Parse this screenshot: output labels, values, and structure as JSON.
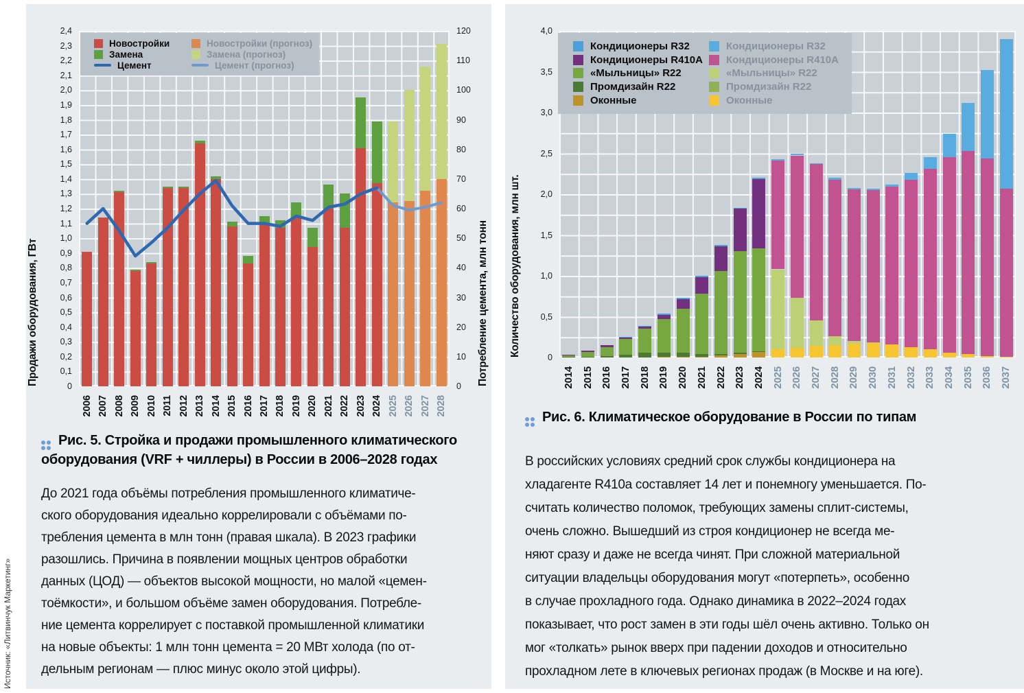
{
  "page": {
    "source_note": "Источник: «Литвинчук Маркетинг»",
    "marker_color": "#6f9ed6",
    "forecast_tick_color": "#7f93a5"
  },
  "fig5": {
    "caption_prefix": "Рис. 5.",
    "caption_body": " Стройка и продажи промышленного климатического\nоборудования (VRF + чиллеры) в России в 2006–2028 годах",
    "paragraph": "До 2021 года объёмы потребления промышленного климатиче-\nского оборудования идеально коррелировали с объёмами по-\nтребления цемента в млн тонн (правая шкала). В 2023 графики\nразошлись. Причина в появлении мощных центров обработки\nданных (ЦОД) — объектов высокой мощности, но малой «цемен-\nтоёмкости», и большом объёме замен оборудования. Потребле-\nние цемента коррелирует с поставкой промышленной климатики\nна новые объекты: 1 млн тонн цемента = 20 МВт холода (по от-\nдельным регионам — плюс минус около этой цифры)."
  },
  "fig6": {
    "caption_prefix": "Рис. 6.",
    "caption_body": " Климатическое оборудование в России по типам",
    "paragraph": "В российских условиях средний срок службы кондиционера на\nхладагенте R410a составляет 14 лет и понемногу уменьшается. По-\nсчитать количество поломок, требующих замены сплит-системы,\nочень сложно. Вышедший из строя кондиционер не всегда ме-\nняют сразу и даже не всегда чинят. При сложной материальной\nситуации владельцы оборудования могут «потерпеть», особенно\nв случае прохладного года. Однако динамика в 2022–2024 годах\nпоказывает, что рост замен в эти годы шёл очень активно. Только он\nмог «толкать» рынок вверх при падении доходов и относительно\nпрохладном лете в ключевых регионах продаж (в Москве и на юге)."
  },
  "chart_data": [
    {
      "id": "fig5",
      "type": "bar+line",
      "title": "Стройка и продажи промышленного климатического оборудования (VRF + чиллеры) в России в 2006–2028 годах",
      "ylabel_left": "Продажи оборудования, ГВт",
      "ylabel_right": "Потребление цемента, млн тонн",
      "ylim_left": [
        0,
        2.4
      ],
      "ytick_left": 0.1,
      "ylim_right": [
        0,
        120
      ],
      "ytick_right": 10,
      "grid": true,
      "legend_position": "top-left",
      "categories": [
        2006,
        2007,
        2008,
        2009,
        2010,
        2011,
        2012,
        2013,
        2014,
        2015,
        2016,
        2017,
        2018,
        2019,
        2020,
        2021,
        2022,
        2023,
        2024,
        2025,
        2026,
        2027,
        2028
      ],
      "forecast_start": 2025,
      "legend_actual": [
        "Новостройки",
        "Замена",
        "Цемент"
      ],
      "legend_forecast": [
        "Новостройки (прогноз)",
        "Замена (прогноз)",
        "Цемент (прогноз)"
      ],
      "series": {
        "new_build_gw": [
          0.91,
          1.14,
          1.31,
          0.78,
          0.83,
          1.34,
          1.34,
          1.64,
          1.4,
          1.08,
          0.83,
          1.09,
          1.07,
          1.14,
          0.94,
          1.2,
          1.07,
          1.61,
          1.37,
          1.24,
          1.25,
          1.32,
          1.4
        ],
        "replacement_gw": [
          0.0,
          0.0,
          0.01,
          0.01,
          0.01,
          0.01,
          0.01,
          0.02,
          0.02,
          0.03,
          0.05,
          0.06,
          0.05,
          0.1,
          0.13,
          0.16,
          0.23,
          0.34,
          0.42,
          0.55,
          0.75,
          0.84,
          0.91
        ],
        "cement_mln_tonn": [
          55,
          60,
          52.5,
          44,
          48.5,
          53.5,
          59.5,
          65,
          69.5,
          61,
          55,
          55,
          54,
          57.5,
          56,
          60.5,
          61.5,
          65,
          67,
          61,
          59.5,
          60.5,
          62
        ]
      },
      "colors": {
        "new_build": "#cb4c42",
        "replacement": "#5ea03f",
        "new_build_forecast": "#e0874d",
        "replacement_forecast": "#c6d47d",
        "cement": "#2d68b0",
        "cement_forecast": "#6e9ace"
      }
    },
    {
      "id": "fig6",
      "type": "stacked-bar",
      "title": "Климатическое оборудование в России по типам",
      "ylabel": "Количество оборудования, млн шт.",
      "ylim": [
        0,
        4.0
      ],
      "ytick": 0.5,
      "grid": true,
      "legend_position": "top-left",
      "categories": [
        2014,
        2015,
        2016,
        2017,
        2018,
        2019,
        2020,
        2021,
        2022,
        2023,
        2024,
        2025,
        2026,
        2027,
        2028,
        2029,
        2030,
        2031,
        2032,
        2033,
        2034,
        2035,
        2036,
        2037
      ],
      "forecast_start": 2025,
      "stack_order": [
        "window",
        "promdesign",
        "mylnitsy",
        "r410a",
        "r32"
      ],
      "legend_order": [
        "r32",
        "r410a",
        "mylnitsy",
        "promdesign",
        "window"
      ],
      "series_labels": {
        "r32": "Кондиционеры R32",
        "r410a": "Кондиционеры R410A",
        "mylnitsy": "«Мыльницы» R22",
        "promdesign": "Промдизайн R22",
        "window": "Оконные"
      },
      "series": {
        "window": [
          0,
          0,
          0,
          0,
          0,
          0.005,
          0.01,
          0.01,
          0.025,
          0.045,
          0.065,
          0.1,
          0.12,
          0.14,
          0.155,
          0.17,
          0.18,
          0.16,
          0.13,
          0.1,
          0.06,
          0.04,
          0.02,
          0.01
        ],
        "promdesign": [
          0.005,
          0.01,
          0.015,
          0.03,
          0.055,
          0.055,
          0.045,
          0.035,
          0.02,
          0.01,
          0.01,
          0,
          0,
          0,
          0,
          0,
          0,
          0,
          0,
          0,
          0,
          0,
          0,
          0
        ],
        "mylnitsy": [
          0.02,
          0.06,
          0.115,
          0.2,
          0.295,
          0.41,
          0.545,
          0.735,
          1.015,
          1.245,
          1.26,
          0.98,
          0.615,
          0.31,
          0.105,
          0.03,
          0.005,
          0,
          0,
          0,
          0,
          0,
          0,
          0
        ],
        "r410a": [
          0.005,
          0.01,
          0.02,
          0.02,
          0.025,
          0.05,
          0.115,
          0.2,
          0.3,
          0.52,
          0.85,
          1.33,
          1.74,
          1.92,
          1.92,
          1.86,
          1.865,
          1.93,
          2.05,
          2.21,
          2.39,
          2.49,
          2.42,
          2.06
        ],
        "r32": [
          0,
          0,
          0,
          0.005,
          0.01,
          0.015,
          0.015,
          0.02,
          0.02,
          0.01,
          0.02,
          0.02,
          0.025,
          0.01,
          0.02,
          0.02,
          0.02,
          0.03,
          0.08,
          0.14,
          0.29,
          0.59,
          1.08,
          1.83
        ]
      },
      "colors_actual": {
        "r32": "#4aa0d8",
        "r410a": "#73307f",
        "mylnitsy": "#76a83f",
        "promdesign": "#4c7a33",
        "window": "#bd9226"
      },
      "colors_forecast": {
        "r32": "#58acdf",
        "r410a": "#c05390",
        "mylnitsy": "#bdd074",
        "promdesign": "#93b055",
        "window": "#f6c52f"
      }
    }
  ]
}
